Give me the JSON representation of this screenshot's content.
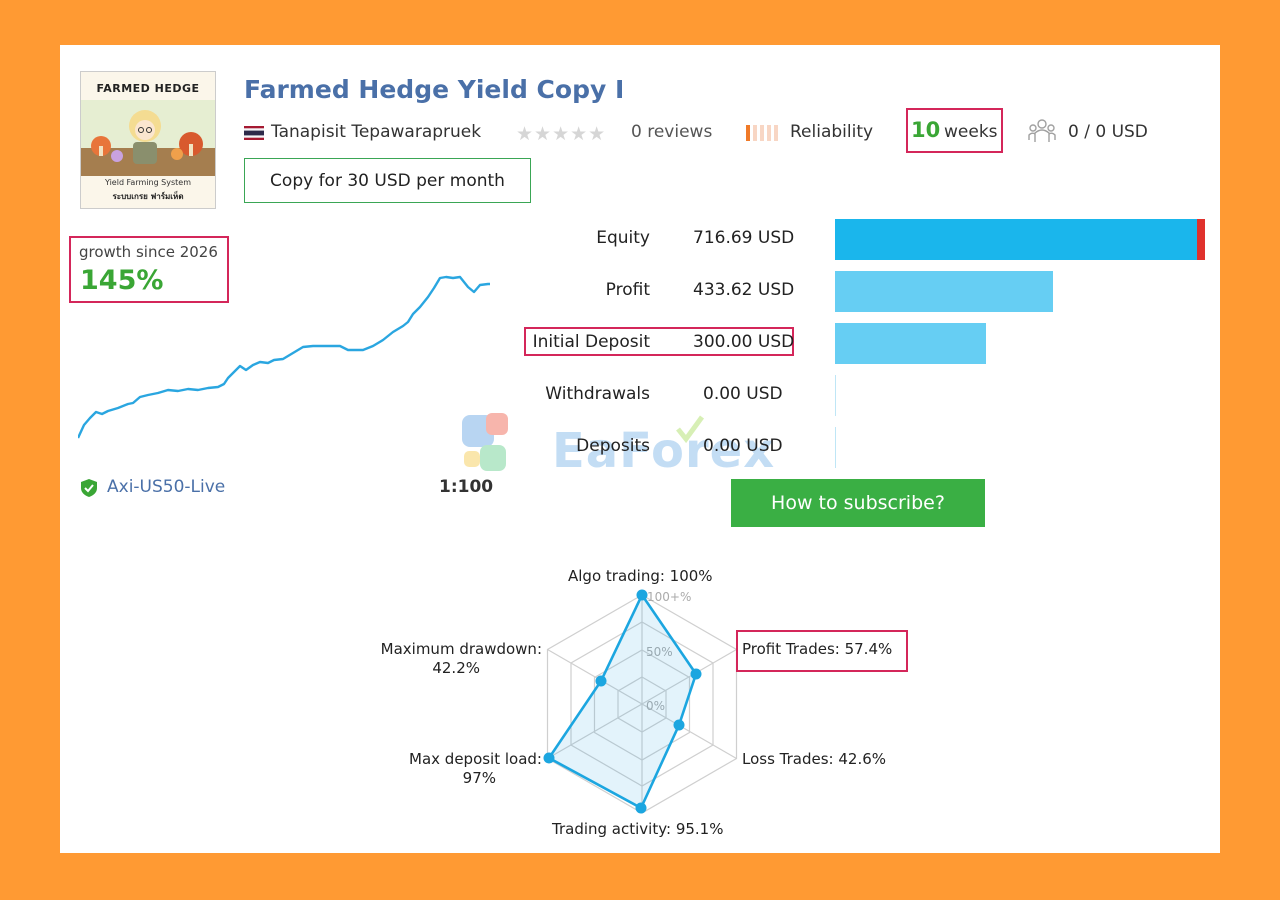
{
  "signal": {
    "logo_title": "FARMED HEDGE",
    "logo_subtitle": "Yield Farming System",
    "logo_thai": "ระบบเกรย ฟาร์มเห็ด",
    "title": "Farmed Hedge Yield Copy I",
    "author": "Tanapisit Tepawarapruek",
    "reviews": "0 reviews",
    "stars_filled": 0,
    "reliability_label": "Reliability",
    "weeks_value": "10",
    "weeks_unit": "weeks",
    "subscribers": "0 / 0 USD",
    "copy_button": "Copy for 30 USD per month"
  },
  "growth": {
    "label": "growth since 2026",
    "value": "145%"
  },
  "account": {
    "server": "Axi-US50-Live",
    "leverage": "1:100"
  },
  "stats": [
    {
      "label": "Equity",
      "value": "716.69 USD"
    },
    {
      "label": "Profit",
      "value": "433.62 USD"
    },
    {
      "label": "Initial Deposit",
      "value": "300.00 USD"
    },
    {
      "label": "Withdrawals",
      "value": "0.00 USD"
    },
    {
      "label": "Deposits",
      "value": "0.00 USD"
    }
  ],
  "subscribe_button": "How to subscribe?",
  "watermark": "EaForex",
  "radar": {
    "scale_labels": [
      "100+%",
      "50%",
      "0%"
    ],
    "axes": [
      {
        "label": "Algo trading: 100%",
        "value": 100
      },
      {
        "label": "Profit Trades: 57.4%",
        "value": 57.4
      },
      {
        "label": "Loss Trades: 42.6%",
        "value": 42.6
      },
      {
        "label": "Trading activity: 95.1%",
        "value": 95.1
      },
      {
        "label_line1": "Max deposit load:",
        "label_line2": "97%",
        "value": 97
      },
      {
        "label_line1": "Maximum drawdown:",
        "label_line2": "42.2%",
        "value": 42.2
      }
    ]
  },
  "colors": {
    "title_blue": "#4a70a8",
    "green": "#3aa635",
    "highlight_red": "#d4265a",
    "equity_bar": "#1ab6ec",
    "bar_light": "#66cef3",
    "line": "#2aa6e0"
  }
}
